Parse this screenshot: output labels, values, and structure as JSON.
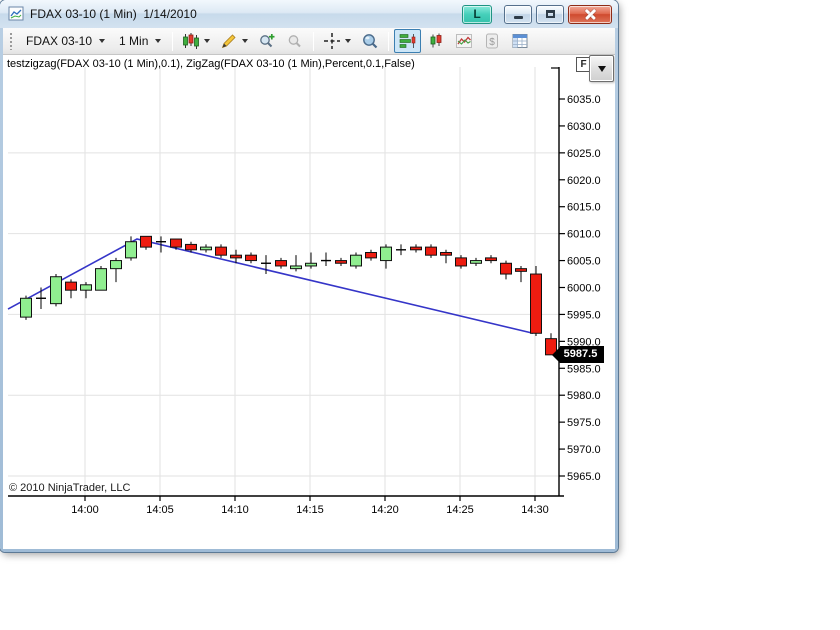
{
  "window": {
    "title": "FDAX 03-10 (1 Min)  1/14/2010",
    "controls": {
      "link": "L"
    }
  },
  "toolbar": {
    "instrument": "FDAX 03-10",
    "interval": "1 Min",
    "dollar_glyph": "$",
    "icons": [
      "chart-style-icon",
      "drawing-tools-icon",
      "zoom-in-icon",
      "zoom-out-icon",
      "crosshair-icon",
      "data-box-icon",
      "chart-panel-icon",
      "candlestick-series-icon",
      "line-series-icon",
      "dollar-icon",
      "data-grid-icon"
    ]
  },
  "chart": {
    "indicator_label": "testzigzag(FDAX 03-10 (1 Min),0.1), ZigZag(FDAX 03-10 (1 Min),Percent,0.1,False)",
    "copyright": "© 2010 NinjaTrader, LLC",
    "fixed_scale_label": "F",
    "price_marker": "5987.5"
  },
  "colors": {
    "up": "#90ee90",
    "down": "#ee1c10",
    "candle_border": "#111111",
    "zigzag": "#3535c8",
    "grid": "#e2e2e2",
    "axis": "#000000",
    "marker_bg": "#000000",
    "marker_text": "#ffffff",
    "link_button": "#45cfba",
    "close_button": "#cf4a2e"
  },
  "chart_data": {
    "type": "candlestick",
    "instrument": "FDAX 03-10",
    "interval": "1 Min",
    "date": "1/14/2010",
    "x_ticks": [
      "14:00",
      "14:05",
      "14:10",
      "14:15",
      "14:20",
      "14:25",
      "14:30"
    ],
    "y_ticks": [
      "6035.0",
      "6030.0",
      "6025.0",
      "6020.0",
      "6015.0",
      "6010.0",
      "6005.0",
      "6000.0",
      "5995.0",
      "5990.0",
      "5985.0",
      "5980.0",
      "5975.0",
      "5970.0",
      "5965.0"
    ],
    "h_gridline_prices": [
      6025,
      6010,
      5995,
      5980,
      5965
    ],
    "y_range": [
      5965.0,
      6035.0
    ],
    "last_price": 5987.5,
    "candles": [
      {
        "t": "13:56",
        "o": 5994.5,
        "h": 5998.5,
        "l": 5994.0,
        "c": 5998.0
      },
      {
        "t": "13:57",
        "o": 5998.0,
        "h": 6000.0,
        "l": 5996.0,
        "c": 5998.0
      },
      {
        "t": "13:58",
        "o": 5997.0,
        "h": 6002.5,
        "l": 5996.5,
        "c": 6002.0
      },
      {
        "t": "13:59",
        "o": 6001.0,
        "h": 6001.5,
        "l": 5998.0,
        "c": 5999.5
      },
      {
        "t": "14:00",
        "o": 5999.5,
        "h": 6001.0,
        "l": 5998.0,
        "c": 6000.5
      },
      {
        "t": "14:01",
        "o": 5999.5,
        "h": 6004.0,
        "l": 5999.5,
        "c": 6003.5
      },
      {
        "t": "14:02",
        "o": 6003.5,
        "h": 6005.5,
        "l": 6001.0,
        "c": 6005.0
      },
      {
        "t": "14:03",
        "o": 6005.5,
        "h": 6009.5,
        "l": 6005.0,
        "c": 6008.5
      },
      {
        "t": "14:04",
        "o": 6009.5,
        "h": 6009.5,
        "l": 6007.0,
        "c": 6007.5
      },
      {
        "t": "14:05",
        "o": 6008.5,
        "h": 6009.5,
        "l": 6006.5,
        "c": 6008.5
      },
      {
        "t": "14:06",
        "o": 6009.0,
        "h": 6009.0,
        "l": 6007.0,
        "c": 6007.5
      },
      {
        "t": "14:07",
        "o": 6008.0,
        "h": 6008.5,
        "l": 6006.5,
        "c": 6007.0
      },
      {
        "t": "14:08",
        "o": 6007.0,
        "h": 6008.0,
        "l": 6006.5,
        "c": 6007.5
      },
      {
        "t": "14:09",
        "o": 6007.5,
        "h": 6008.0,
        "l": 6005.5,
        "c": 6006.0
      },
      {
        "t": "14:10",
        "o": 6006.0,
        "h": 6007.0,
        "l": 6004.5,
        "c": 6005.5
      },
      {
        "t": "14:11",
        "o": 6006.0,
        "h": 6006.5,
        "l": 6004.5,
        "c": 6005.0
      },
      {
        "t": "14:12",
        "o": 6004.5,
        "h": 6006.0,
        "l": 6002.5,
        "c": 6004.5
      },
      {
        "t": "14:13",
        "o": 6005.0,
        "h": 6005.5,
        "l": 6003.5,
        "c": 6004.0
      },
      {
        "t": "14:14",
        "o": 6003.5,
        "h": 6006.0,
        "l": 6003.0,
        "c": 6004.0
      },
      {
        "t": "14:15",
        "o": 6004.0,
        "h": 6006.5,
        "l": 6003.5,
        "c": 6004.5
      },
      {
        "t": "14:16",
        "o": 6005.0,
        "h": 6006.5,
        "l": 6004.0,
        "c": 6005.0
      },
      {
        "t": "14:17",
        "o": 6005.0,
        "h": 6005.5,
        "l": 6004.0,
        "c": 6004.5
      },
      {
        "t": "14:18",
        "o": 6004.0,
        "h": 6006.5,
        "l": 6003.5,
        "c": 6006.0
      },
      {
        "t": "14:19",
        "o": 6006.5,
        "h": 6007.0,
        "l": 6005.0,
        "c": 6005.5
      },
      {
        "t": "14:20",
        "o": 6005.0,
        "h": 6008.0,
        "l": 6003.5,
        "c": 6007.5
      },
      {
        "t": "14:21",
        "o": 6007.0,
        "h": 6008.0,
        "l": 6006.0,
        "c": 6007.0
      },
      {
        "t": "14:22",
        "o": 6007.5,
        "h": 6008.0,
        "l": 6006.5,
        "c": 6007.0
      },
      {
        "t": "14:23",
        "o": 6007.5,
        "h": 6008.0,
        "l": 6005.5,
        "c": 6006.0
      },
      {
        "t": "14:24",
        "o": 6006.5,
        "h": 6007.0,
        "l": 6004.5,
        "c": 6006.0
      },
      {
        "t": "14:25",
        "o": 6005.5,
        "h": 6006.0,
        "l": 6003.5,
        "c": 6004.0
      },
      {
        "t": "14:26",
        "o": 6004.5,
        "h": 6005.5,
        "l": 6004.0,
        "c": 6005.0
      },
      {
        "t": "14:27",
        "o": 6005.5,
        "h": 6006.0,
        "l": 6004.5,
        "c": 6005.0
      },
      {
        "t": "14:28",
        "o": 6004.5,
        "h": 6005.0,
        "l": 6001.5,
        "c": 6002.5
      },
      {
        "t": "14:29",
        "o": 6003.5,
        "h": 6004.0,
        "l": 6001.0,
        "c": 6003.0
      },
      {
        "t": "14:30",
        "o": 6002.5,
        "h": 6004.0,
        "l": 5991.0,
        "c": 5991.5
      },
      {
        "t": "14:31",
        "o": 5990.5,
        "h": 5991.5,
        "l": 5987.5,
        "c": 5987.5
      }
    ],
    "zigzag": {
      "points": [
        {
          "bar": -1.2,
          "price": 5996.0
        },
        {
          "bar": 7.4,
          "price": 6009.0
        },
        {
          "bar": 33.8,
          "price": 5991.5
        }
      ]
    }
  }
}
